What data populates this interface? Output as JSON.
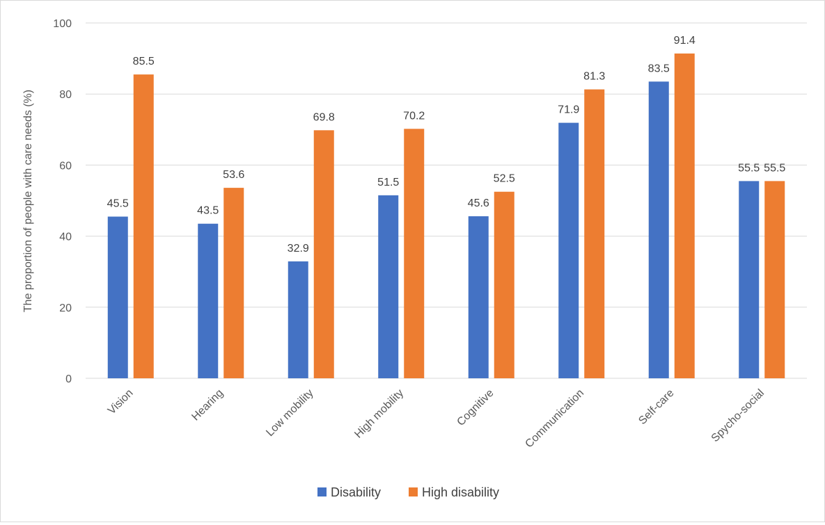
{
  "colors": {
    "disability": "#4472C4",
    "high_disability": "#ED7D31",
    "grid": "#d9d9d9",
    "text": "#595959"
  },
  "chart_data": {
    "type": "bar",
    "title": "",
    "xlabel": "",
    "ylabel": "The proportion of people with care needs (%)",
    "ylim": [
      0,
      100
    ],
    "yticks": [
      0,
      20,
      40,
      60,
      80,
      100
    ],
    "grid": true,
    "legend_position": "bottom",
    "categories": [
      "Vision",
      "Hearing",
      "Low mobility",
      "High mobility",
      "Cognitive",
      "Communication",
      "Self-care",
      "Spycho-social"
    ],
    "series": [
      {
        "name": "Disability",
        "values": [
          45.5,
          43.5,
          32.9,
          51.5,
          45.6,
          71.9,
          83.5,
          55.5
        ]
      },
      {
        "name": "High disability",
        "values": [
          85.5,
          53.6,
          69.8,
          70.2,
          52.5,
          81.3,
          91.4,
          55.5
        ]
      }
    ]
  }
}
